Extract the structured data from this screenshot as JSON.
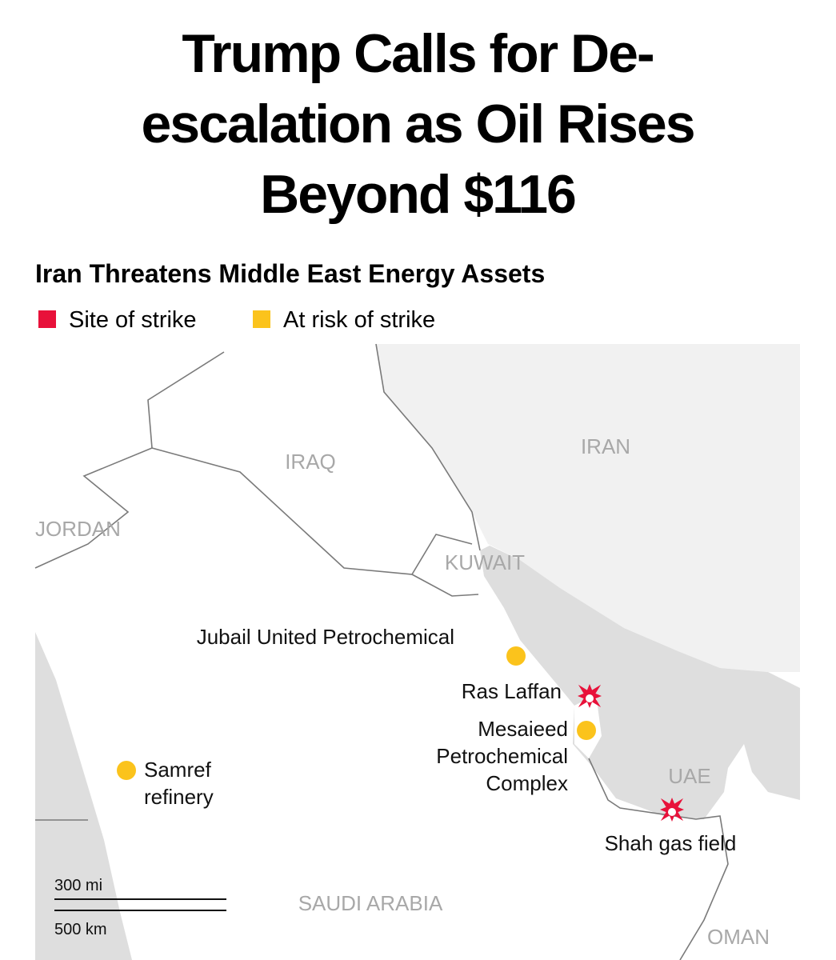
{
  "header": {
    "title_lines": [
      "Trump Calls for De-",
      "escalation as Oil Rises",
      "Beyond $116"
    ]
  },
  "map": {
    "title": "Iran Threatens Middle East Energy Assets",
    "legend": [
      {
        "label": "Site of strike",
        "color": "#e8113a",
        "sites": [
          {
            "label_lines": [
              "Ras Laffan"
            ]
          },
          {
            "label_lines": [
              "Shah gas field"
            ]
          }
        ]
      },
      {
        "label": "At risk of strike",
        "color": "#fbc31c",
        "sites": [
          {
            "label_lines": [
              "Jubail United Petrochemical"
            ]
          },
          {
            "label_lines": [
              "Mesaieed",
              "Petrochemical",
              "Complex"
            ]
          },
          {
            "label_lines": [
              "Samref",
              "refinery"
            ]
          }
        ]
      }
    ],
    "countries": [
      "IRAN",
      "IRAQ",
      "JORDAN",
      "KUWAIT",
      "UAE",
      "SAUDI ARABIA",
      "OMAN"
    ],
    "scale": [
      "300 mi",
      "500 km"
    ]
  }
}
